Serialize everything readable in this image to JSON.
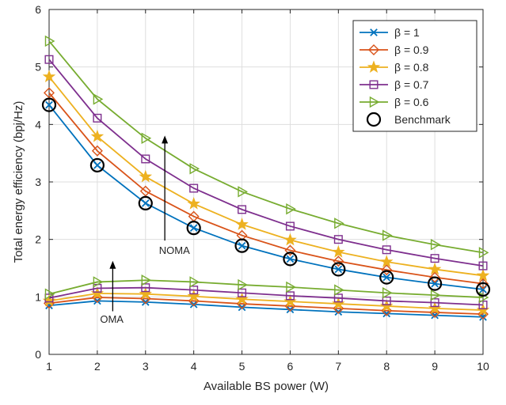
{
  "chart_data": {
    "type": "line",
    "xlabel": "Available BS power (W)",
    "ylabel": "Total energy efficiency (bpj/Hz)",
    "xlim": [
      1,
      10
    ],
    "ylim": [
      0,
      6
    ],
    "x_ticks": [
      "1",
      "2",
      "3",
      "4",
      "5",
      "6",
      "7",
      "8",
      "9",
      "10"
    ],
    "y_ticks": [
      "0",
      "1",
      "2",
      "3",
      "4",
      "5",
      "6"
    ],
    "grid": true,
    "legend_position": "top-right",
    "x": [
      1,
      2,
      3,
      4,
      5,
      6,
      7,
      8,
      9,
      10
    ],
    "series": [
      {
        "name": "β = 1",
        "group": "NOMA",
        "marker": "x",
        "color": "#0072BD",
        "values": [
          4.34,
          3.29,
          2.63,
          2.2,
          1.89,
          1.66,
          1.48,
          1.34,
          1.23,
          1.13
        ]
      },
      {
        "name": "β = 0.9",
        "group": "NOMA",
        "marker": "diamond",
        "color": "#D95319",
        "values": [
          4.55,
          3.54,
          2.84,
          2.4,
          2.07,
          1.81,
          1.62,
          1.47,
          1.34,
          1.23
        ]
      },
      {
        "name": "β = 0.8",
        "group": "NOMA",
        "marker": "star",
        "color": "#EDB120",
        "values": [
          4.83,
          3.79,
          3.09,
          2.62,
          2.26,
          1.99,
          1.78,
          1.61,
          1.48,
          1.37
        ]
      },
      {
        "name": "β = 0.7",
        "group": "NOMA",
        "marker": "square",
        "color": "#7E2F8E",
        "values": [
          5.13,
          4.11,
          3.4,
          2.89,
          2.52,
          2.23,
          2.0,
          1.82,
          1.67,
          1.54
        ]
      },
      {
        "name": "β = 0.6",
        "group": "NOMA",
        "marker": "triangle-right",
        "color": "#77AC30",
        "values": [
          5.45,
          4.44,
          3.76,
          3.23,
          2.83,
          2.53,
          2.28,
          2.07,
          1.91,
          1.77
        ]
      },
      {
        "name": "",
        "group": "OMA",
        "marker": "x",
        "color": "#0072BD",
        "values": [
          0.85,
          0.93,
          0.91,
          0.87,
          0.82,
          0.78,
          0.74,
          0.71,
          0.68,
          0.65
        ]
      },
      {
        "name": "",
        "group": "OMA",
        "marker": "diamond",
        "color": "#D95319",
        "values": [
          0.89,
          0.99,
          0.97,
          0.93,
          0.88,
          0.84,
          0.8,
          0.76,
          0.73,
          0.7
        ]
      },
      {
        "name": "",
        "group": "OMA",
        "marker": "star",
        "color": "#EDB120",
        "values": [
          0.93,
          1.06,
          1.05,
          1.01,
          0.96,
          0.92,
          0.88,
          0.84,
          0.8,
          0.77
        ]
      },
      {
        "name": "",
        "group": "OMA",
        "marker": "square",
        "color": "#7E2F8E",
        "values": [
          0.98,
          1.15,
          1.16,
          1.12,
          1.07,
          1.02,
          0.98,
          0.93,
          0.9,
          0.86
        ]
      },
      {
        "name": "",
        "group": "OMA",
        "marker": "triangle-right",
        "color": "#77AC30",
        "values": [
          1.05,
          1.26,
          1.29,
          1.26,
          1.21,
          1.17,
          1.12,
          1.07,
          1.03,
          0.99
        ]
      },
      {
        "name": "Benchmark",
        "group": "NOMA",
        "marker": "circle",
        "color": "#000000",
        "values": [
          4.34,
          3.29,
          2.63,
          2.2,
          1.89,
          1.66,
          1.48,
          1.34,
          1.23,
          1.13
        ]
      }
    ],
    "legend": [
      "β = 1",
      "β = 0.9",
      "β = 0.8",
      "β = 0.7",
      "β = 0.6",
      "Benchmark"
    ],
    "annotations": [
      {
        "text": "NOMA",
        "x": 3.6,
        "y": 1.75
      },
      {
        "text": "OMA",
        "x": 2.3,
        "y": 0.55
      }
    ]
  }
}
